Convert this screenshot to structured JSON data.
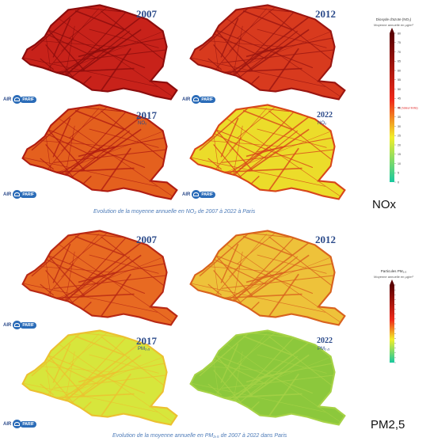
{
  "nox": {
    "label": "NOx",
    "caption": "Evolution de la moyenne annuelle en NO₂ de 2007 à 2022 à Paris",
    "maps": [
      {
        "year": "2007",
        "pollutant": "",
        "fill": "#c8221a",
        "street": "#8b0c0c"
      },
      {
        "year": "2012",
        "pollutant": "",
        "fill": "#d83a1e",
        "street": "#9a1510"
      },
      {
        "year": "2017",
        "pollutant": "NO₂",
        "fill": "#e4601e",
        "street": "#b01d12"
      },
      {
        "year": "2022",
        "pollutant": "NO₂",
        "fill": "#ecdc2a",
        "street": "#d8461a"
      }
    ],
    "legend": {
      "title": "Dioxyde d'azote (NO₂)",
      "subtitle": "Moyenne annuelle en µg/m³",
      "ticks": [
        "80",
        "75",
        "70",
        "65",
        "60",
        "55",
        "50",
        "45",
        "40",
        "35",
        "30",
        "25",
        "20",
        "15",
        "10",
        "5",
        "0"
      ],
      "limit_label": "VL (Valeur limite)"
    },
    "logo_text": "AIR",
    "logo_badge": "PARIF"
  },
  "pm25": {
    "label": "PM2,5",
    "caption": "Evolution de la moyenne annuelle en PM₂,₅ de 2007 à 2022 dans Paris",
    "maps": [
      {
        "year": "2007",
        "pollutant": "",
        "fill": "#e86a22",
        "street": "#b82814"
      },
      {
        "year": "2012",
        "pollutant": "",
        "fill": "#eec23a",
        "street": "#d8621e"
      },
      {
        "year": "2017",
        "pollutant": "PM₂,₅",
        "fill": "#d7e63c",
        "street": "#ecc030"
      },
      {
        "year": "2022",
        "pollutant": "PM₂,₅",
        "fill": "#8cc83c",
        "street": "#a6d246"
      }
    ],
    "legend": {
      "title": "Particules PM₂,₅",
      "subtitle": "Moyenne annuelle en µg/m³",
      "ticks": [
        "",
        "",
        "",
        "",
        "",
        "",
        "",
        "",
        "",
        "",
        "",
        "",
        "",
        "",
        "",
        "",
        ""
      ]
    },
    "logo_text": "AIR",
    "logo_badge": "PARIF"
  },
  "colors": {
    "year_text": "#2b4a8a",
    "caption_text": "#4d7bb8",
    "scale_top": "#5a0000",
    "scale_mid": "#f02a1a",
    "scale_yellow": "#f2ee2a",
    "scale_bottom": "#18c8a0"
  }
}
